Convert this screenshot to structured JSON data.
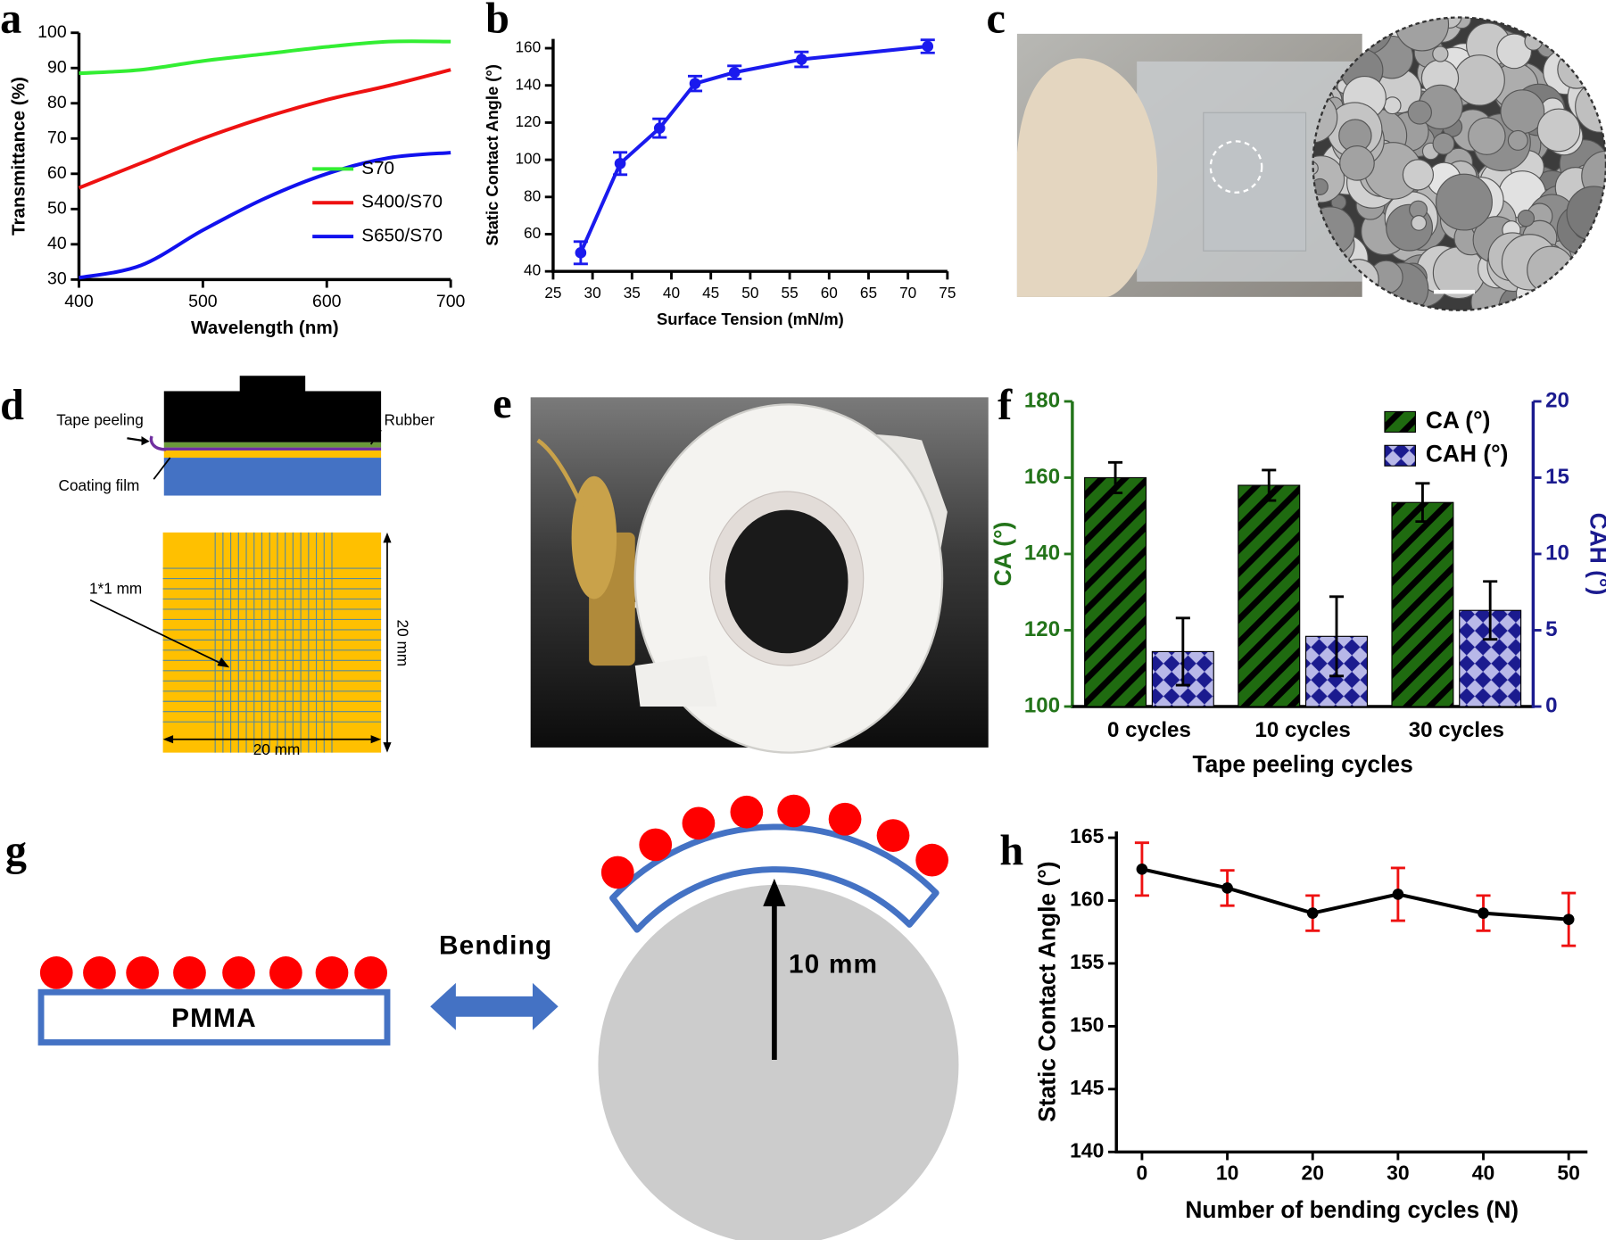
{
  "panels": [
    "a",
    "b",
    "c",
    "d",
    "e",
    "f",
    "g",
    "h"
  ],
  "diagram": {
    "tape_peeling": "Tape peeling",
    "rubber": "Rubber",
    "coating_film": "Coating film",
    "grid_size": "1*1 mm",
    "side_v": "20 mm",
    "side_h": "20 mm",
    "pmma": "PMMA",
    "bending": "Bending",
    "radius": "10 mm"
  },
  "chart_data": [
    {
      "type": "line",
      "x": [
        400,
        450,
        500,
        550,
        600,
        650,
        700
      ],
      "series": [
        {
          "name": "S70",
          "color": "#33ee33",
          "values": [
            88.5,
            89.5,
            92,
            94,
            96,
            97.5,
            97.5
          ]
        },
        {
          "name": "S400/S70",
          "color": "#ee1111",
          "values": [
            56,
            63,
            70,
            76,
            81,
            85,
            89.5
          ]
        },
        {
          "name": "S650/S70",
          "color": "#1111ee",
          "values": [
            30.5,
            34,
            44,
            53,
            60,
            64.5,
            66
          ]
        }
      ],
      "xlim": [
        400,
        700
      ],
      "xticks": [
        400,
        500,
        600,
        700
      ],
      "ylim": [
        30,
        100
      ],
      "yticks": [
        30,
        40,
        50,
        60,
        70,
        80,
        90,
        100
      ],
      "xlabel": "Wavelength (nm)",
      "ylabel": "Transmittance (%)",
      "legend": "lower right"
    },
    {
      "type": "line",
      "x": [
        28.5,
        33.5,
        38.5,
        43,
        48,
        56.5,
        72.5
      ],
      "series": [
        {
          "color": "#1a1aee",
          "values": [
            50,
            98,
            117,
            141,
            147,
            154,
            161
          ],
          "errors": [
            6,
            6,
            5,
            4,
            3.5,
            4,
            3.5
          ]
        }
      ],
      "xlim": [
        25,
        75
      ],
      "xticks": [
        25,
        30,
        35,
        40,
        45,
        50,
        55,
        60,
        65,
        70,
        75
      ],
      "ylim": [
        40,
        165
      ],
      "yticks": [
        40,
        60,
        80,
        100,
        120,
        140,
        160
      ],
      "xlabel": "Surface Tension (mN/m)",
      "ylabel": "Static Contact Angle (°)"
    },
    {
      "type": "bar",
      "categories": [
        "0 cycles",
        "10 cycles",
        "30 cycles"
      ],
      "series": [
        {
          "name": "CA (°)",
          "color": "#1f6b10",
          "values": [
            160,
            158,
            153.5
          ],
          "errors": [
            4,
            4,
            5
          ]
        },
        {
          "name": "CAH (°)",
          "color": "#b8b8e8",
          "values": [
            3.6,
            4.6,
            6.3
          ],
          "errors": [
            2.2,
            2.6,
            1.9
          ],
          "axis": "y2"
        }
      ],
      "ylim": [
        100,
        180
      ],
      "yticks": [
        100,
        120,
        140,
        160,
        180
      ],
      "y2lim": [
        0,
        20
      ],
      "y2ticks": [
        0,
        5,
        10,
        15,
        20
      ],
      "xlabel": "Tape peeling cycles",
      "ylabel": "CA (°)",
      "y2label": "CAH (°)",
      "axis_colors": {
        "y": "#23741a",
        "y2": "#1b1b8f"
      },
      "legend": "upper right"
    },
    {
      "type": "line",
      "x": [
        0,
        10,
        20,
        30,
        40,
        50
      ],
      "series": [
        {
          "color": "#000000",
          "error_color": "#ee1111",
          "values": [
            162.5,
            161,
            159,
            160.5,
            159,
            158.5
          ],
          "errors": [
            2.1,
            1.4,
            1.4,
            2.1,
            1.4,
            2.1
          ]
        }
      ],
      "xlim": [
        -3,
        52.2
      ],
      "xticks": [
        0,
        10,
        20,
        30,
        40,
        50
      ],
      "ylim": [
        140,
        165.5
      ],
      "yticks": [
        140,
        145,
        150,
        155,
        160,
        165
      ],
      "xlabel": "Number of bending cycles (N)",
      "ylabel": "Static Contact Angle (°)"
    }
  ]
}
